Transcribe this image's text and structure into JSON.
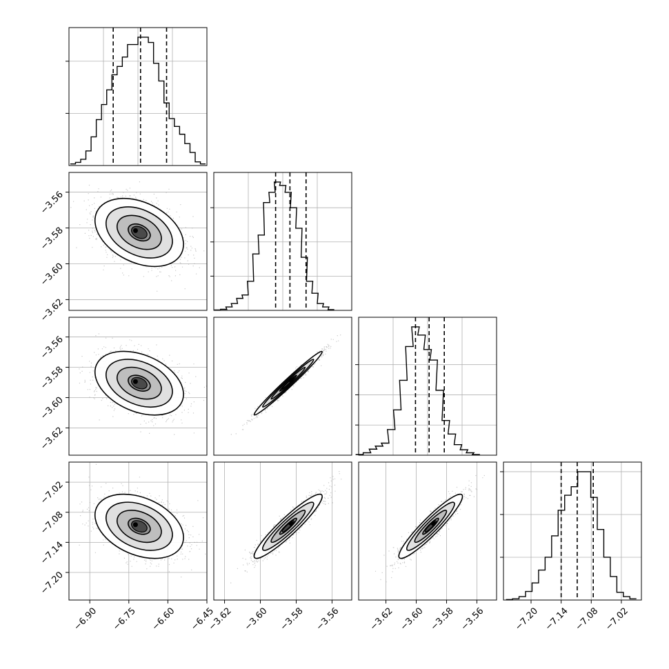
{
  "figure": {
    "background": "#ffffff",
    "grid": true,
    "grid_color": "#b0b0b0"
  },
  "chart_data": [
    {
      "type": "histogram",
      "panel": "0-0",
      "label": "",
      "xlim": [
        -6.98,
        -6.45
      ],
      "x": [
        -6.965,
        -6.945,
        -6.925,
        -6.905,
        -6.885,
        -6.865,
        -6.845,
        -6.825,
        -6.805,
        -6.785,
        -6.765,
        -6.745,
        -6.725,
        -6.705,
        -6.685,
        -6.665,
        -6.645,
        -6.625,
        -6.605,
        -6.585,
        -6.565,
        -6.545,
        -6.525,
        -6.505,
        -6.485,
        -6.465
      ],
      "counts": [
        3,
        6,
        12,
        28,
        55,
        88,
        117,
        145,
        174,
        190,
        208,
        232,
        232,
        246,
        246,
        236,
        196,
        162,
        120,
        90,
        75,
        60,
        42,
        25,
        7,
        3
      ],
      "quantiles": [
        -6.81,
        -6.705,
        -6.605
      ],
      "xticks": [],
      "yticks": [],
      "ytick_marks": [
        0,
        100,
        200
      ]
    },
    {
      "type": "scatter_density",
      "panel": "1-0",
      "xlim": [
        -6.98,
        -6.45
      ],
      "ylim": [
        -3.626,
        -3.549
      ],
      "center": [
        -6.71,
        -3.5825
      ],
      "sigma": [
        0.085,
        0.0095
      ],
      "correlation": -0.35,
      "contour_levels": [
        0.5,
        1.0,
        1.5,
        2.0
      ],
      "xticks": [],
      "yticks": [
        "−3.56",
        "−3.58",
        "−3.60",
        "−3.62"
      ],
      "ytick_values": [
        -3.56,
        -3.58,
        -3.6,
        -3.62
      ]
    },
    {
      "type": "histogram",
      "panel": "1-1",
      "xlim": [
        -3.626,
        -3.549
      ],
      "x": [
        -3.624,
        -3.6205,
        -3.6175,
        -3.6145,
        -3.6115,
        -3.6085,
        -3.6055,
        -3.6025,
        -3.5995,
        -3.5965,
        -3.5935,
        -3.5905,
        -3.5875,
        -3.5845,
        -3.5815,
        -3.5785,
        -3.5755,
        -3.5725,
        -3.5695,
        -3.5665,
        -3.5635,
        -3.5605
      ],
      "counts": [
        1,
        3,
        10,
        20,
        35,
        45,
        85,
        165,
        220,
        315,
        345,
        375,
        365,
        345,
        300,
        240,
        155,
        85,
        50,
        20,
        10,
        2
      ],
      "quantiles": [
        -3.5915,
        -3.5835,
        -3.5745
      ],
      "xticks": [],
      "yticks": [],
      "ytick_marks": [
        100,
        200,
        300
      ]
    },
    {
      "type": "scatter_density",
      "panel": "2-0",
      "xlim": [
        -6.98,
        -6.45
      ],
      "ylim": [
        -3.638,
        -3.547
      ],
      "center": [
        -6.71,
        -3.5905
      ],
      "sigma": [
        0.085,
        0.0105
      ],
      "correlation": -0.35,
      "contour_levels": [
        0.5,
        1.0,
        1.5,
        2.0
      ],
      "xticks": [],
      "yticks": [
        "−3.56",
        "−3.58",
        "−3.60",
        "−3.62"
      ],
      "ytick_values": [
        -3.56,
        -3.58,
        -3.6,
        -3.62
      ]
    },
    {
      "type": "scatter_density",
      "panel": "2-1",
      "xlim": [
        -3.626,
        -3.549
      ],
      "ylim": [
        -3.638,
        -3.547
      ],
      "center": [
        -3.5845,
        -3.5905
      ],
      "sigma": [
        0.0095,
        0.0105
      ],
      "correlation": 0.985,
      "contour_levels": [
        0.5,
        1.0,
        1.5,
        2.0
      ],
      "xticks": [],
      "yticks": []
    },
    {
      "type": "histogram",
      "panel": "2-2",
      "xlim": [
        -3.638,
        -3.547
      ],
      "x": [
        -3.6375,
        -3.6325,
        -3.6285,
        -3.6245,
        -3.6205,
        -3.6165,
        -3.6125,
        -3.6085,
        -3.6045,
        -3.6005,
        -3.5965,
        -3.5925,
        -3.5885,
        -3.5845,
        -3.5805,
        -3.5765,
        -3.5725,
        -3.5685,
        -3.5645,
        -3.5605
      ],
      "counts": [
        2,
        8,
        20,
        30,
        40,
        85,
        150,
        248,
        360,
        425,
        398,
        350,
        315,
        215,
        115,
        70,
        35,
        18,
        8,
        2
      ],
      "quantiles": [
        -3.6005,
        -3.5915,
        -3.5815
      ],
      "xticks": [],
      "yticks": [],
      "ytick_marks": [
        100,
        200,
        300
      ]
    },
    {
      "type": "scatter_density",
      "panel": "3-0",
      "xlim": [
        -6.98,
        -6.45
      ],
      "ylim": [
        -7.255,
        -6.98
      ],
      "center": [
        -6.71,
        -7.108
      ],
      "sigma": [
        0.085,
        0.032
      ],
      "correlation": -0.35,
      "contour_levels": [
        0.5,
        1.0,
        1.5,
        2.0
      ],
      "xticks": [
        "−6.90",
        "−6.75",
        "−6.60",
        "−6.45"
      ],
      "xtick_values": [
        -6.9,
        -6.75,
        -6.6,
        -6.45
      ],
      "yticks": [
        "−7.02",
        "−7.08",
        "−7.14",
        "−7.20"
      ],
      "ytick_values": [
        -7.02,
        -7.08,
        -7.14,
        -7.2
      ]
    },
    {
      "type": "scatter_density",
      "panel": "3-1",
      "xlim": [
        -3.626,
        -3.549
      ],
      "ylim": [
        -7.255,
        -6.98
      ],
      "center": [
        -3.5845,
        -7.108
      ],
      "sigma": [
        0.0095,
        0.032
      ],
      "correlation": 0.93,
      "contour_levels": [
        0.5,
        1.0,
        1.5,
        2.0
      ],
      "xticks": [
        "−3.62",
        "−3.60",
        "−3.58",
        "−3.56"
      ],
      "xtick_values": [
        -3.62,
        -3.6,
        -3.58,
        -3.56
      ],
      "yticks": []
    },
    {
      "type": "scatter_density",
      "panel": "3-2",
      "xlim": [
        -3.638,
        -3.547
      ],
      "ylim": [
        -7.255,
        -6.98
      ],
      "center": [
        -3.5905,
        -7.108
      ],
      "sigma": [
        0.0105,
        0.032
      ],
      "correlation": 0.93,
      "contour_levels": [
        0.5,
        1.0,
        1.5,
        2.0
      ],
      "xticks": [
        "−3.62",
        "−3.60",
        "−3.58",
        "−3.56"
      ],
      "xtick_values": [
        -3.62,
        -3.6,
        -3.58,
        -3.56
      ],
      "yticks": []
    },
    {
      "type": "histogram",
      "panel": "3-3",
      "xlim": [
        -7.255,
        -6.98
      ],
      "x": [
        -7.2435,
        -7.2305,
        -7.2175,
        -7.2045,
        -7.1915,
        -7.1785,
        -7.1655,
        -7.1525,
        -7.1395,
        -7.1265,
        -7.1135,
        -7.1005,
        -7.0875,
        -7.0745,
        -7.0615,
        -7.0485,
        -7.0355,
        -7.0225,
        -7.0095,
        -6.9965
      ],
      "counts": [
        1,
        3,
        8,
        20,
        40,
        70,
        100,
        150,
        210,
        245,
        265,
        300,
        300,
        240,
        165,
        100,
        55,
        18,
        8,
        3
      ],
      "quantiles": [
        -7.14,
        -7.108,
        -7.076
      ],
      "xticks": [
        "−7.20",
        "−7.14",
        "−7.08",
        "−7.02"
      ],
      "xtick_values": [
        -7.2,
        -7.14,
        -7.08,
        -7.02
      ],
      "yticks": [],
      "ytick_marks": [
        100,
        200,
        300
      ]
    }
  ]
}
